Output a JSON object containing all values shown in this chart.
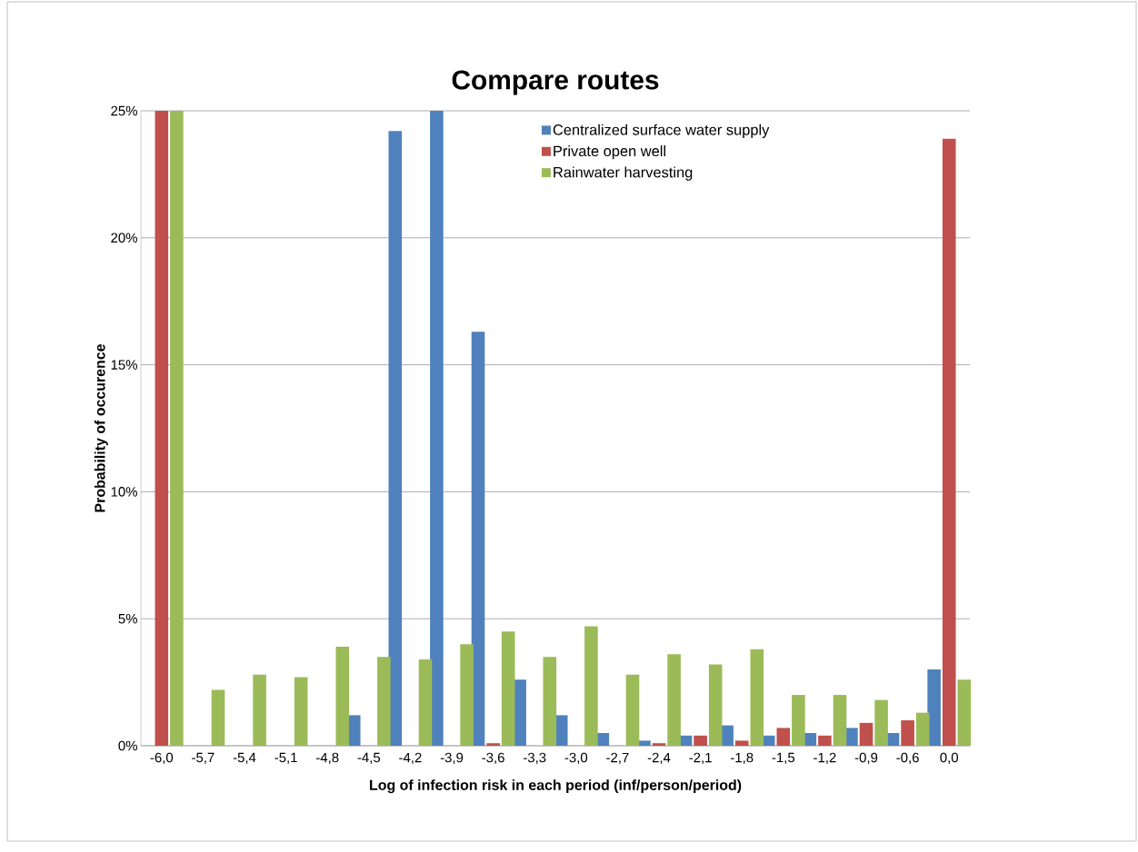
{
  "chart_data": {
    "type": "bar",
    "title": "Compare routes",
    "xlabel": "Log of infection risk in each period (inf/person/period)",
    "ylabel": "Probability of occurence",
    "categories": [
      "-6,0",
      "-5,7",
      "-5,4",
      "-5,1",
      "-4,8",
      "-4,5",
      "-4,2",
      "-3,9",
      "-3,6",
      "-3,3",
      "-3,0",
      "-2,7",
      "-2,4",
      "-2,1",
      "-1,8",
      "-1,5",
      "-1,2",
      "-0,9",
      "-0,6",
      "0,0"
    ],
    "series": [
      {
        "name": "Centralized surface water supply",
        "color": "#4f81bd",
        "values": [
          0,
          0,
          0,
          0,
          0,
          1.2,
          24.2,
          25,
          16.3,
          2.6,
          1.2,
          0.5,
          0.2,
          0.4,
          0.8,
          0.4,
          0.5,
          0.7,
          0.5,
          3.0
        ]
      },
      {
        "name": "Private open well",
        "color": "#c0504d",
        "values": [
          25,
          0,
          0,
          0,
          0,
          0,
          0,
          0,
          0.1,
          0,
          0,
          0,
          0.1,
          0.4,
          0.2,
          0.7,
          0.4,
          0.9,
          1.0,
          23.9
        ]
      },
      {
        "name": "Rainwater harvesting",
        "color": "#9bbb59",
        "values": [
          25,
          2.2,
          2.8,
          2.7,
          3.9,
          3.5,
          3.4,
          4.0,
          4.5,
          3.5,
          4.7,
          2.8,
          3.6,
          3.2,
          3.8,
          2.0,
          2.0,
          1.8,
          1.3,
          2.6
        ]
      }
    ],
    "ylim": [
      0,
      25
    ],
    "yticks": [
      {
        "value": 0,
        "label": "0%"
      },
      {
        "value": 5,
        "label": "5%"
      },
      {
        "value": 10,
        "label": "10%"
      },
      {
        "value": 15,
        "label": "15%"
      },
      {
        "value": 20,
        "label": "20%"
      },
      {
        "value": 25,
        "label": "25%"
      }
    ],
    "grid": "y",
    "legend": "top right"
  }
}
